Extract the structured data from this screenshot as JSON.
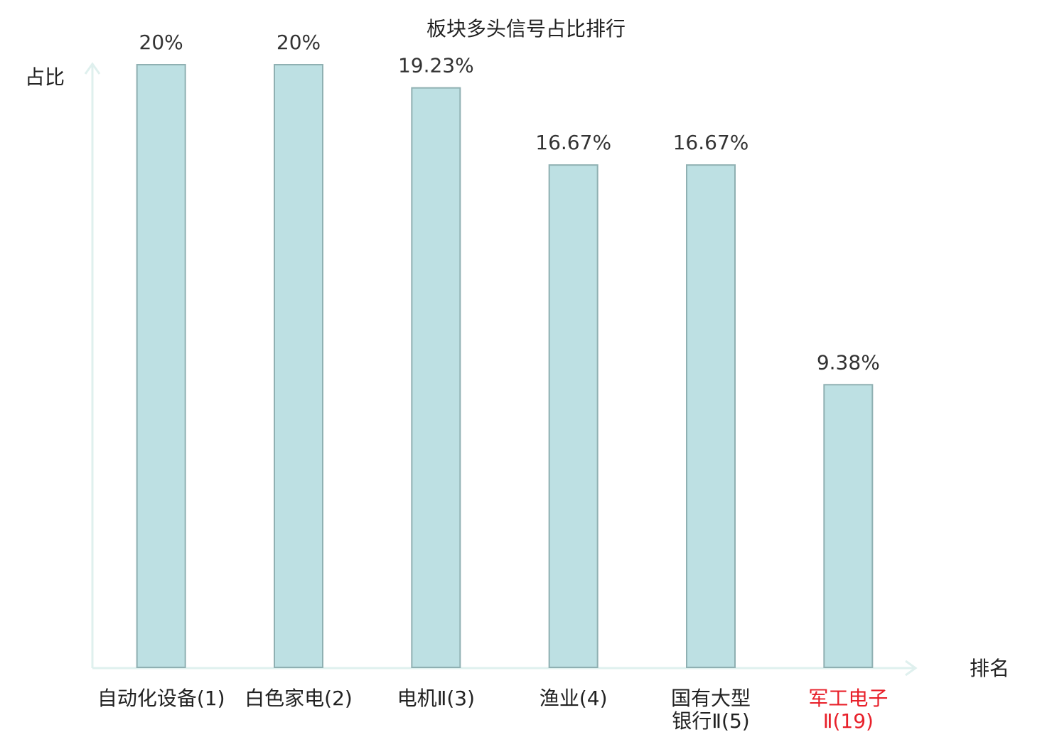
{
  "chart_data": {
    "type": "bar",
    "title": "板块多头信号占比排行",
    "y_label": "占比",
    "x_label": "排名",
    "categories": [
      "自动化设备(1)",
      "白色家电(2)",
      "电机Ⅱ(3)",
      "渔业(4)",
      "国有大型银行Ⅱ(5)",
      "军工电子Ⅱ(19)"
    ],
    "category_colors": [
      "#222222",
      "#222222",
      "#222222",
      "#222222",
      "#222222",
      "#e8202a"
    ],
    "values": [
      20,
      20,
      19.23,
      16.67,
      16.67,
      9.38
    ],
    "value_labels": [
      "20%",
      "20%",
      "19.23%",
      "16.67%",
      "16.67%",
      "9.38%"
    ],
    "color": "#bde0e3",
    "edge_color": "#8fb0b2",
    "ylim": [
      0,
      20
    ]
  }
}
